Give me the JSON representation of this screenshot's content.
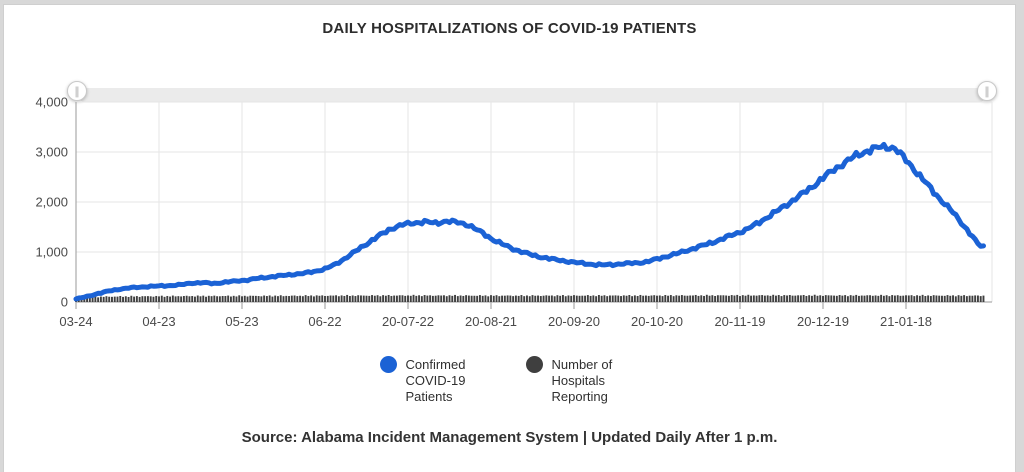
{
  "header": {
    "title": "DAILY HOSPITALIZATIONS OF COVID-19 PATIENTS"
  },
  "time_slider": {
    "handle_icon": "∥"
  },
  "chart_data": {
    "type": "line",
    "title": "DAILY HOSPITALIZATIONS OF COVID-19 PATIENTS",
    "grid": true,
    "legend_position": "bottom",
    "x_axis": {
      "tick_labels": [
        "03-24",
        "04-23",
        "05-23",
        "06-22",
        "20-07-22",
        "20-08-21",
        "20-09-20",
        "20-10-20",
        "20-11-19",
        "20-12-19",
        "21-01-18"
      ],
      "tick_interval_days": 30,
      "total_days": 328
    },
    "y_axis": {
      "ticks": [
        0,
        1000,
        2000,
        3000,
        4000
      ],
      "tick_labels": [
        "0",
        "1,000",
        "2,000",
        "3,000",
        "4,000"
      ],
      "range": [
        0,
        4000
      ]
    },
    "series": [
      {
        "name": "Confirmed COVID-19 Patients",
        "type": "line",
        "color": "#1b62d5",
        "points_day_value": [
          [
            0,
            60
          ],
          [
            4,
            110
          ],
          [
            8,
            170
          ],
          [
            12,
            220
          ],
          [
            16,
            260
          ],
          [
            20,
            285
          ],
          [
            25,
            305
          ],
          [
            30,
            320
          ],
          [
            34,
            330
          ],
          [
            38,
            345
          ],
          [
            42,
            380
          ],
          [
            46,
            385
          ],
          [
            50,
            370
          ],
          [
            54,
            395
          ],
          [
            58,
            420
          ],
          [
            62,
            440
          ],
          [
            66,
            475
          ],
          [
            70,
            500
          ],
          [
            74,
            525
          ],
          [
            78,
            550
          ],
          [
            82,
            570
          ],
          [
            86,
            610
          ],
          [
            90,
            660
          ],
          [
            94,
            760
          ],
          [
            98,
            900
          ],
          [
            102,
            1050
          ],
          [
            106,
            1200
          ],
          [
            110,
            1340
          ],
          [
            114,
            1470
          ],
          [
            118,
            1545
          ],
          [
            122,
            1580
          ],
          [
            126,
            1605
          ],
          [
            130,
            1575
          ],
          [
            134,
            1620
          ],
          [
            138,
            1590
          ],
          [
            142,
            1540
          ],
          [
            146,
            1410
          ],
          [
            150,
            1270
          ],
          [
            154,
            1160
          ],
          [
            158,
            1060
          ],
          [
            162,
            990
          ],
          [
            166,
            920
          ],
          [
            170,
            880
          ],
          [
            174,
            840
          ],
          [
            178,
            810
          ],
          [
            182,
            780
          ],
          [
            186,
            755
          ],
          [
            190,
            740
          ],
          [
            194,
            750
          ],
          [
            198,
            765
          ],
          [
            202,
            780
          ],
          [
            206,
            800
          ],
          [
            210,
            860
          ],
          [
            214,
            920
          ],
          [
            218,
            980
          ],
          [
            222,
            1050
          ],
          [
            226,
            1120
          ],
          [
            230,
            1190
          ],
          [
            234,
            1270
          ],
          [
            238,
            1360
          ],
          [
            242,
            1440
          ],
          [
            246,
            1560
          ],
          [
            250,
            1700
          ],
          [
            254,
            1840
          ],
          [
            258,
            1990
          ],
          [
            262,
            2140
          ],
          [
            266,
            2300
          ],
          [
            270,
            2480
          ],
          [
            274,
            2650
          ],
          [
            278,
            2790
          ],
          [
            282,
            2930
          ],
          [
            286,
            3020
          ],
          [
            290,
            3090
          ],
          [
            293,
            3110
          ],
          [
            296,
            3070
          ],
          [
            299,
            2900
          ],
          [
            302,
            2720
          ],
          [
            305,
            2520
          ],
          [
            308,
            2330
          ],
          [
            311,
            2140
          ],
          [
            314,
            1960
          ],
          [
            317,
            1790
          ],
          [
            320,
            1590
          ],
          [
            323,
            1380
          ],
          [
            326,
            1160
          ],
          [
            328,
            1100
          ]
        ]
      },
      {
        "name": "Number of Hospitals Reporting",
        "type": "bar",
        "color": "#3f3f3f",
        "points_day_value": [
          [
            0,
            100
          ],
          [
            20,
            112
          ],
          [
            40,
            118
          ],
          [
            60,
            120
          ],
          [
            80,
            124
          ],
          [
            100,
            128
          ],
          [
            120,
            130
          ],
          [
            140,
            128
          ],
          [
            160,
            126
          ],
          [
            180,
            128
          ],
          [
            200,
            128
          ],
          [
            220,
            130
          ],
          [
            240,
            132
          ],
          [
            260,
            132
          ],
          [
            280,
            130
          ],
          [
            300,
            130
          ],
          [
            315,
            128
          ],
          [
            328,
            126
          ]
        ]
      }
    ]
  },
  "footer": {
    "source": "Source: Alabama Incident Management System | Updated Daily After 1 p.m."
  }
}
